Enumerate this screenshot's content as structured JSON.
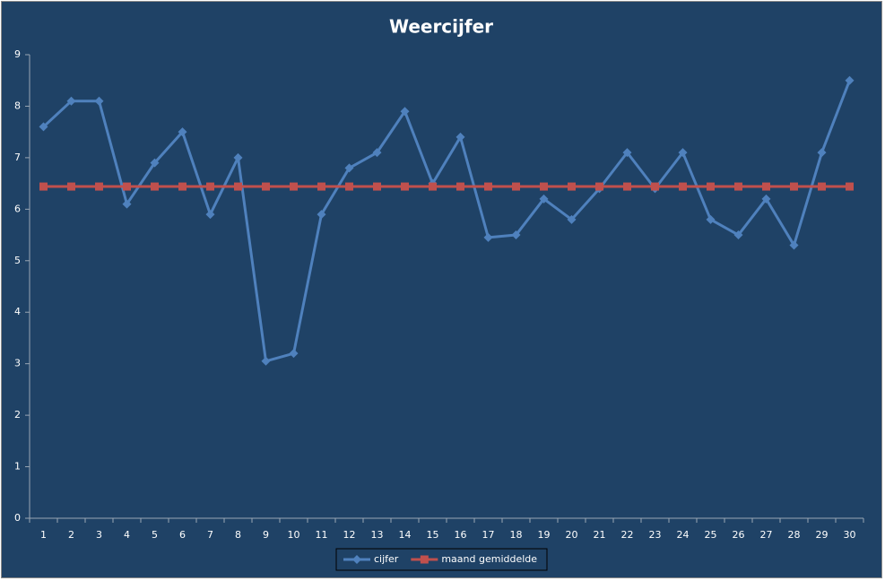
{
  "chart_data": {
    "type": "line",
    "title": "Weercijfer",
    "categories": [
      "1",
      "2",
      "3",
      "4",
      "5",
      "6",
      "7",
      "8",
      "9",
      "10",
      "11",
      "12",
      "13",
      "14",
      "15",
      "16",
      "17",
      "18",
      "19",
      "20",
      "21",
      "22",
      "23",
      "24",
      "25",
      "26",
      "27",
      "28",
      "29",
      "30"
    ],
    "series": [
      {
        "name": "cijfer",
        "color": "#4f81bd",
        "marker": "diamond",
        "values": [
          7.6,
          8.1,
          8.1,
          6.1,
          6.9,
          7.5,
          5.9,
          7.0,
          3.05,
          3.2,
          5.9,
          6.8,
          7.1,
          7.9,
          6.5,
          7.4,
          5.45,
          5.5,
          6.2,
          5.8,
          6.4,
          7.1,
          6.4,
          7.1,
          5.8,
          5.5,
          6.2,
          5.3,
          7.1,
          8.5
        ]
      },
      {
        "name": "maand gemiddelde",
        "color": "#c0504d",
        "marker": "square",
        "values": [
          6.44,
          6.44,
          6.44,
          6.44,
          6.44,
          6.44,
          6.44,
          6.44,
          6.44,
          6.44,
          6.44,
          6.44,
          6.44,
          6.44,
          6.44,
          6.44,
          6.44,
          6.44,
          6.44,
          6.44,
          6.44,
          6.44,
          6.44,
          6.44,
          6.44,
          6.44,
          6.44,
          6.44,
          6.44,
          6.44
        ]
      }
    ],
    "ylim": [
      0,
      9
    ],
    "yticks": [
      0,
      1,
      2,
      3,
      4,
      5,
      6,
      7,
      8,
      9
    ],
    "grid": false,
    "legend": "bottom"
  }
}
